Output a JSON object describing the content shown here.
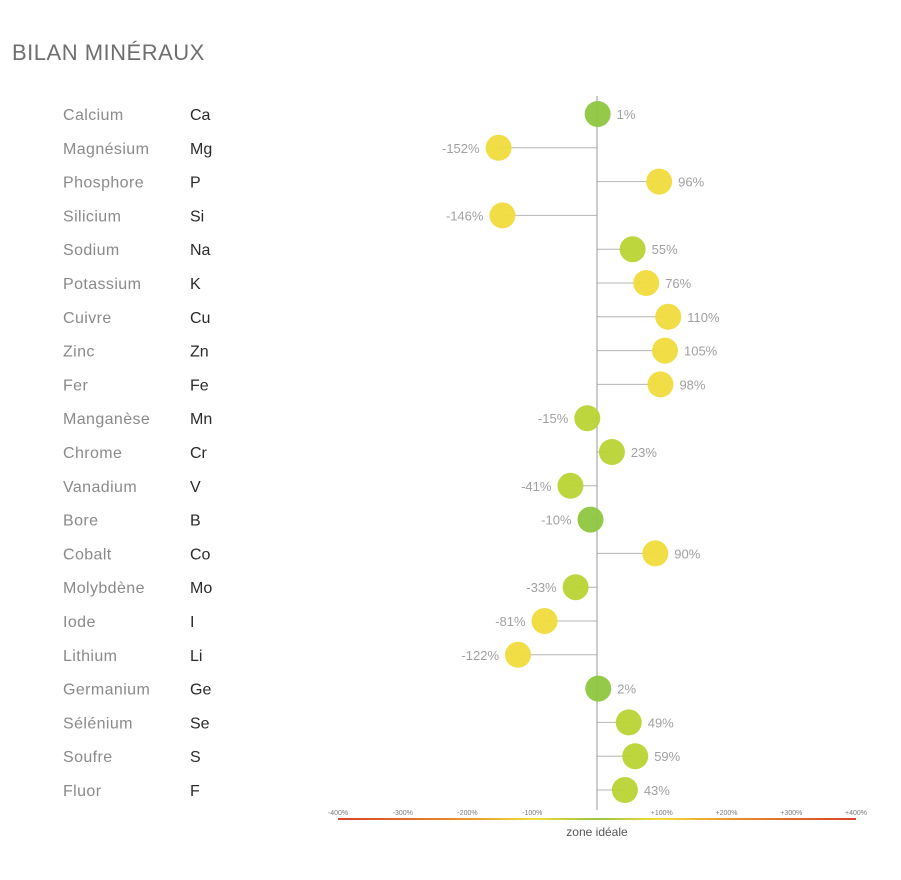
{
  "header": {
    "title": "BILAN MINÉRAUX"
  },
  "colors": {
    "ideal": "#8ec63f",
    "near": "#b9d433",
    "warn": "#f0dc3c",
    "axis_low": "#d9432b",
    "axis_mid": "#9cc53f"
  },
  "chart_data": {
    "type": "dot-deviation",
    "title": "BILAN MINÉRAUX",
    "xlabel": "zone idéale",
    "xlim": [
      -400,
      400
    ],
    "x_ticks": [
      "-400%",
      "-300%",
      "-200%",
      "-100%",
      "+100%",
      "+200%",
      "+300%",
      "+400%"
    ],
    "x_tick_values": [
      -400,
      -300,
      -200,
      -100,
      100,
      200,
      300,
      400
    ],
    "rows": [
      {
        "name": "Calcium",
        "symbol": "Ca",
        "value": 1,
        "label": "1%"
      },
      {
        "name": "Magnésium",
        "symbol": "Mg",
        "value": -152,
        "label": "-152%"
      },
      {
        "name": "Phosphore",
        "symbol": "P",
        "value": 96,
        "label": "96%"
      },
      {
        "name": "Silicium",
        "symbol": "Si",
        "value": -146,
        "label": "-146%"
      },
      {
        "name": "Sodium",
        "symbol": "Na",
        "value": 55,
        "label": "55%"
      },
      {
        "name": "Potassium",
        "symbol": "K",
        "value": 76,
        "label": "76%"
      },
      {
        "name": "Cuivre",
        "symbol": "Cu",
        "value": 110,
        "label": "110%"
      },
      {
        "name": "Zinc",
        "symbol": "Zn",
        "value": 105,
        "label": "105%"
      },
      {
        "name": "Fer",
        "symbol": "Fe",
        "value": 98,
        "label": "98%"
      },
      {
        "name": "Manganèse",
        "symbol": "Mn",
        "value": -15,
        "label": "-15%"
      },
      {
        "name": "Chrome",
        "symbol": "Cr",
        "value": 23,
        "label": "23%"
      },
      {
        "name": "Vanadium",
        "symbol": "V",
        "value": -41,
        "label": "-41%"
      },
      {
        "name": "Bore",
        "symbol": "B",
        "value": -10,
        "label": "-10%"
      },
      {
        "name": "Cobalt",
        "symbol": "Co",
        "value": 90,
        "label": "90%"
      },
      {
        "name": "Molybdène",
        "symbol": "Mo",
        "value": -33,
        "label": "-33%"
      },
      {
        "name": "Iode",
        "symbol": "I",
        "value": -81,
        "label": "-81%"
      },
      {
        "name": "Lithium",
        "symbol": "Li",
        "value": -122,
        "label": "-122%"
      },
      {
        "name": "Germanium",
        "symbol": "Ge",
        "value": 2,
        "label": "2%"
      },
      {
        "name": "Sélénium",
        "symbol": "Se",
        "value": 49,
        "label": "49%"
      },
      {
        "name": "Soufre",
        "symbol": "S",
        "value": 59,
        "label": "59%"
      },
      {
        "name": "Fluor",
        "symbol": "F",
        "value": 43,
        "label": "43%"
      }
    ]
  }
}
